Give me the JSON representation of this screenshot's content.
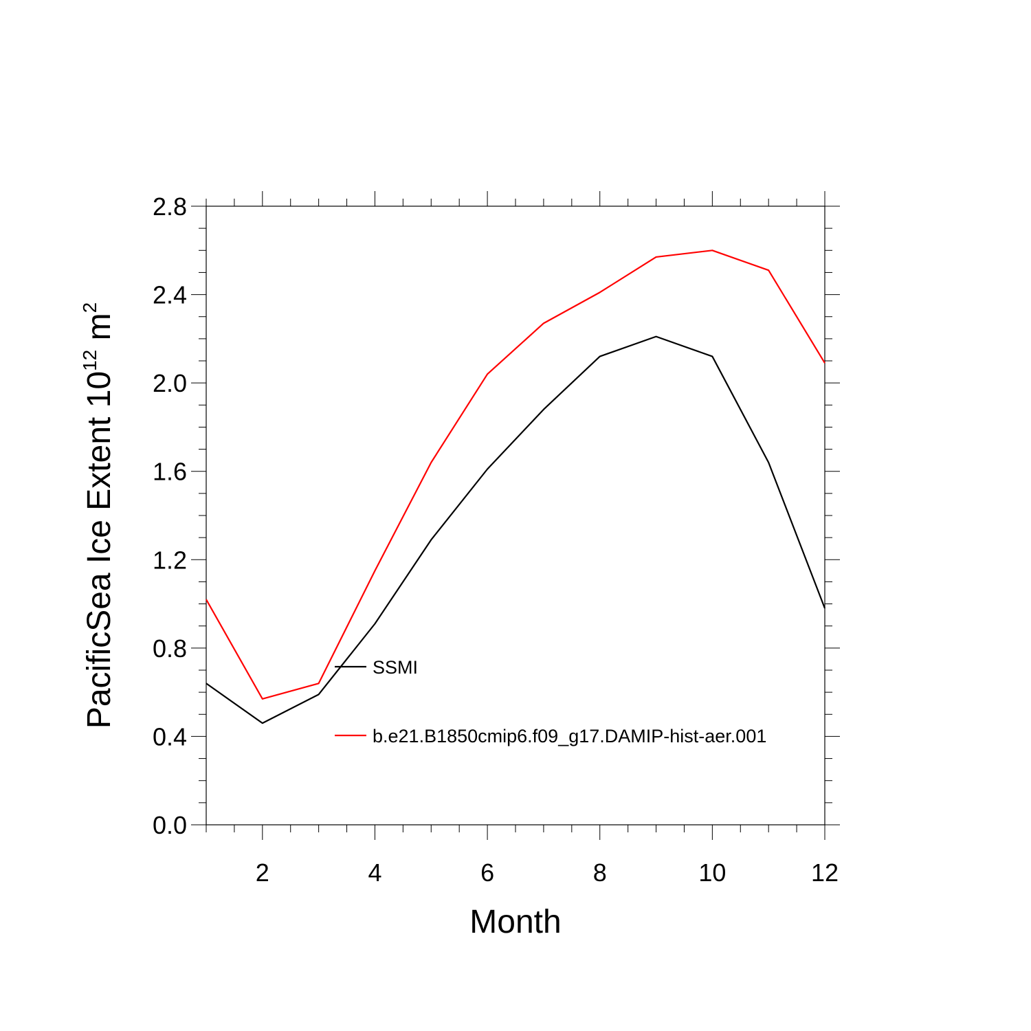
{
  "chart_data": {
    "type": "line",
    "xlabel": "Month",
    "ylabel": {
      "text": "PacificSea Ice Extent 10",
      "superscript": "12",
      "unit": " m",
      "unit_superscript": "2"
    },
    "xlim": [
      1,
      12
    ],
    "ylim": [
      0,
      2.8
    ],
    "x_ticks": [
      2,
      4,
      6,
      8,
      10,
      12
    ],
    "x_tick_labels": [
      "2",
      "4",
      "6",
      "8",
      "10",
      "12"
    ],
    "y_ticks": [
      0,
      0.4,
      0.8,
      1.2,
      1.6,
      2.0,
      2.4,
      2.8
    ],
    "y_tick_labels": [
      "0.0",
      "0.4",
      "0.8",
      "1.2",
      "1.6",
      "2.0",
      "2.4",
      "2.8"
    ],
    "grid": false,
    "legend_position": "inside-center",
    "x": [
      1,
      2,
      3,
      4,
      5,
      6,
      7,
      8,
      9,
      10,
      11,
      12
    ],
    "series": [
      {
        "name": "SSMI",
        "color": "#000000",
        "values": [
          0.64,
          0.46,
          0.59,
          0.91,
          1.29,
          1.61,
          1.88,
          2.12,
          2.21,
          2.12,
          1.64,
          0.98
        ]
      },
      {
        "name": "b.e21.B1850cmip6.f09_g17.DAMIP-hist-aer.001",
        "color": "#ff0000",
        "values": [
          1.02,
          0.57,
          0.64,
          1.15,
          1.64,
          2.04,
          2.27,
          2.41,
          2.57,
          2.6,
          2.51,
          2.09
        ]
      }
    ]
  }
}
